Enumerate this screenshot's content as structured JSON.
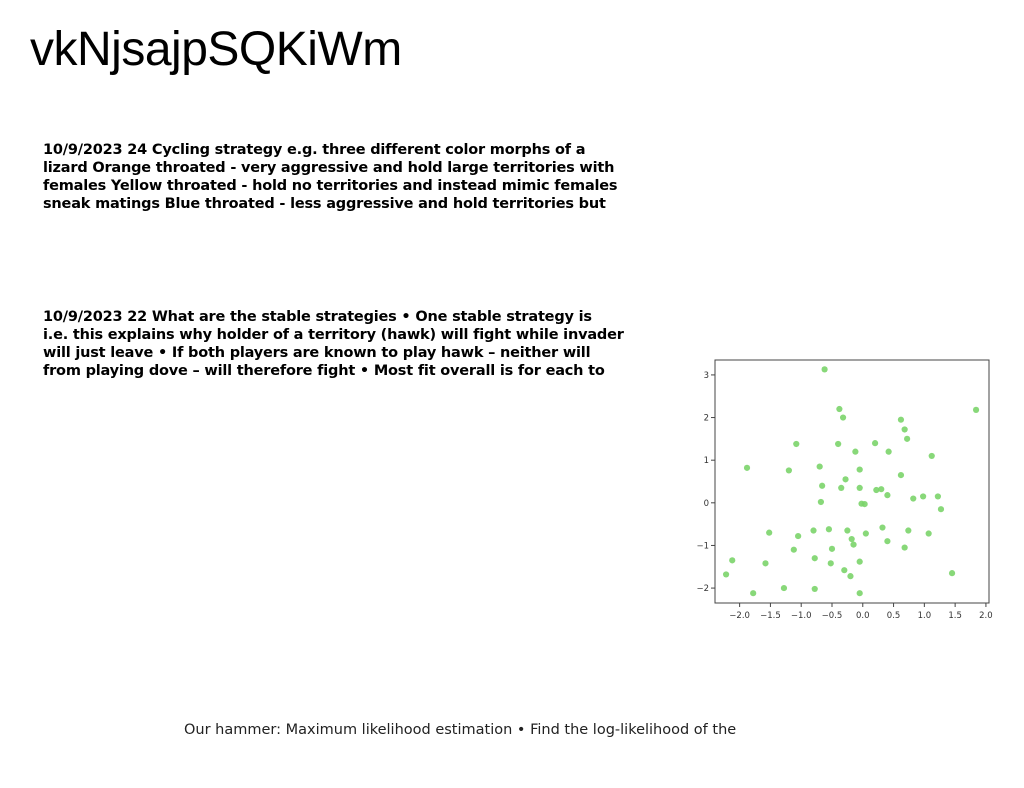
{
  "title": "vkNjsajpSQKiWm",
  "snippets": [
    {
      "lines": [
        "10/9/2023 24 Cycling strategy e.g. three different color morphs of a",
        "lizard Orange throated - very aggressive and hold large territories with",
        "females Yellow throated - hold no territories and instead mimic females",
        "sneak matings Blue throated - less aggressive and hold territories but"
      ]
    },
    {
      "lines": [
        "10/9/2023 22 What are the stable strategies • One stable strategy is",
        "i.e. this explains why holder of a territory (hawk) will fight while invader",
        "will just leave • If both players are known to play hawk – neither will",
        "from playing dove – will therefore fight • Most fit overall is for each to"
      ]
    }
  ],
  "footer": {
    "caption": "Our hammer: Maximum likelihood estimation • Find the log-likelihood of the"
  },
  "chart_data": {
    "type": "scatter",
    "title": "",
    "xlabel": "",
    "ylabel": "",
    "xlim": [
      -2.4,
      2.05
    ],
    "ylim": [
      -2.35,
      3.35
    ],
    "xticks": [
      "−2.0",
      "−1.5",
      "−1.0",
      "−0.5",
      "0.0",
      "0.5",
      "1.0",
      "1.5",
      "2.0"
    ],
    "xtick_values": [
      -2.0,
      -1.5,
      -1.0,
      -0.5,
      0.0,
      0.5,
      1.0,
      1.5,
      2.0
    ],
    "yticks": [
      "−2",
      "−1",
      "0",
      "1",
      "2",
      "3"
    ],
    "ytick_values": [
      -2,
      -1,
      0,
      1,
      2,
      3
    ],
    "grid": false,
    "point_color": "#7bd46a",
    "series": [
      {
        "x": [
          -0.62,
          -0.38,
          -0.32,
          0.62,
          0.68,
          1.84,
          0.72,
          -0.4,
          0.2,
          0.42,
          -1.08,
          -0.12,
          -1.88,
          -0.7,
          -1.2,
          -0.05,
          -0.28,
          1.12,
          -0.66,
          -0.35,
          -0.05,
          0.3,
          0.22,
          0.4,
          0.62,
          0.98,
          1.22,
          0.82,
          -0.68,
          -0.02,
          0.03,
          1.27,
          0.32,
          0.05,
          -0.55,
          -0.8,
          -0.25,
          0.74,
          1.07,
          -1.52,
          -0.18,
          -1.05,
          0.4,
          -0.15,
          0.68,
          -1.12,
          -0.5,
          -0.78,
          -2.12,
          -1.58,
          -0.52,
          -0.05,
          -0.3,
          -1.28,
          -0.78,
          -0.2,
          1.45,
          -2.22,
          -1.78,
          -0.05
        ],
        "y": [
          3.13,
          2.2,
          2.0,
          1.95,
          1.72,
          2.18,
          1.5,
          1.38,
          1.4,
          1.2,
          1.38,
          1.2,
          0.82,
          0.85,
          0.76,
          0.78,
          0.55,
          1.1,
          0.4,
          0.35,
          0.35,
          0.32,
          0.3,
          0.18,
          0.65,
          0.15,
          0.15,
          0.1,
          0.02,
          -0.02,
          -0.03,
          -0.15,
          -0.58,
          -0.72,
          -0.62,
          -0.65,
          -0.65,
          -0.65,
          -0.72,
          -0.7,
          -0.85,
          -0.78,
          -0.9,
          -0.98,
          -1.05,
          -1.1,
          -1.08,
          -1.3,
          -1.35,
          -1.42,
          -1.42,
          -1.38,
          -1.58,
          -2.0,
          -2.02,
          -1.72,
          -1.65,
          -1.68,
          -2.12,
          -2.12
        ]
      }
    ]
  }
}
